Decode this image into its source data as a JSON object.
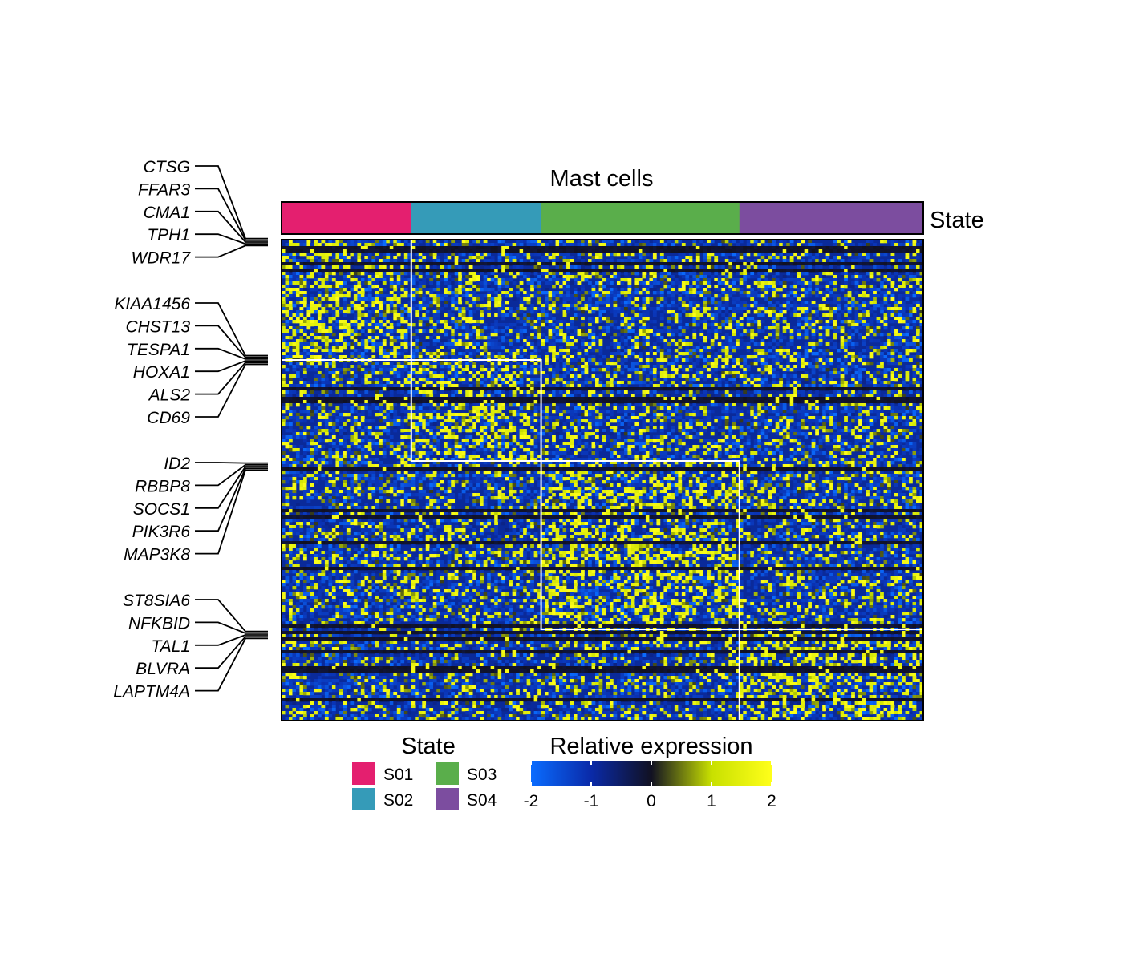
{
  "chart_data": {
    "type": "heatmap",
    "title": "Mast cells",
    "annotation": {
      "label": "State",
      "legend_title": "State",
      "states": [
        {
          "name": "S01",
          "color": "#e41f6f",
          "cells": 36
        },
        {
          "name": "S02",
          "color": "#359bb8",
          "cells": 36
        },
        {
          "name": "S03",
          "color": "#5aae4b",
          "cells": 55
        },
        {
          "name": "S04",
          "color": "#7c4d9f",
          "cells": 51
        }
      ]
    },
    "gene_groups": [
      {
        "state": "S01",
        "row_fraction": 0.25,
        "genes": [
          "CTSG",
          "FFAR3",
          "CMA1",
          "TPH1",
          "WDR17"
        ]
      },
      {
        "state": "S02",
        "row_fraction": 0.21,
        "genes": [
          "KIAA1456",
          "CHST13",
          "TESPA1",
          "HOXA1",
          "ALS2",
          "CD69"
        ]
      },
      {
        "state": "S03",
        "row_fraction": 0.35,
        "genes": [
          "ID2",
          "RBBP8",
          "SOCS1",
          "PIK3R6",
          "MAP3K8"
        ]
      },
      {
        "state": "S04",
        "row_fraction": 0.19,
        "genes": [
          "ST8SIA6",
          "NFKBID",
          "TAL1",
          "BLVRA",
          "LAPTM4A"
        ]
      }
    ],
    "color_scale": {
      "title": "Relative expression",
      "min": -2,
      "max": 2,
      "ticks": [
        -2,
        -1,
        0,
        1,
        2
      ],
      "stops": [
        {
          "value": -2,
          "color": "#0a6cff"
        },
        {
          "value": -1,
          "color": "#0a2aa8"
        },
        {
          "value": 0,
          "color": "#111122"
        },
        {
          "value": 1,
          "color": "#c8e000"
        },
        {
          "value": 2,
          "color": "#ffff1a"
        }
      ]
    }
  }
}
